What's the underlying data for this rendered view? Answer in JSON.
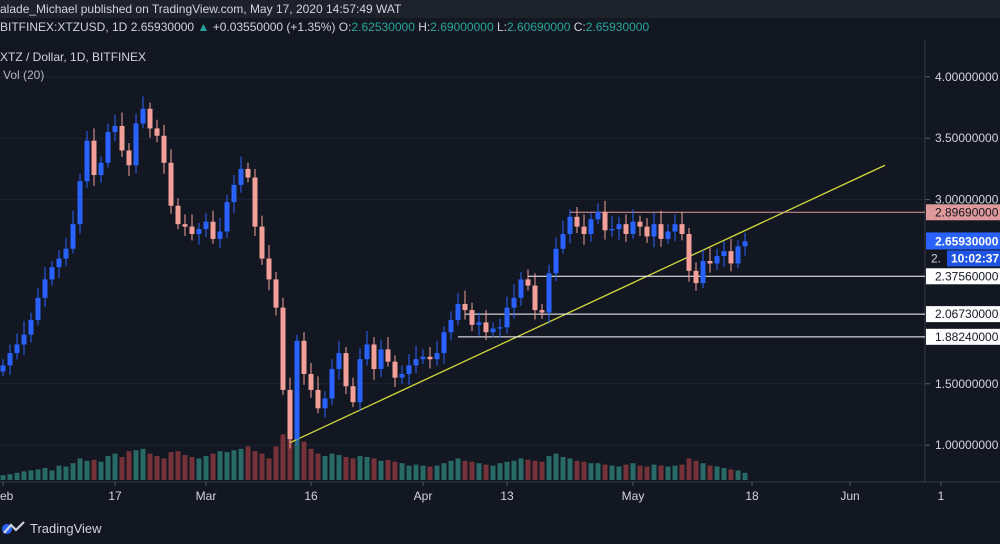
{
  "header": {
    "publisher_line": "alade_Michael published on TradingView.com, May 17, 2020 14:57:49 WAT",
    "ticker": "BITFINEX:XTZUSD, 1D",
    "last": "2.65930000",
    "change": "+0.03550000 (+1.35%)",
    "o_label": "O:",
    "o_value": "2.62530000",
    "h_label": "H:",
    "h_value": "2.69000000",
    "l_label": "L:",
    "l_value": "2.60690000",
    "c_label": "C:",
    "c_value": "2.65930000"
  },
  "legend": {
    "symbol": "XTZ / Dollar, 1D, BITFINEX",
    "volume": "Vol (20)"
  },
  "footer": {
    "brand": "TradingView"
  },
  "colors": {
    "background": "#131722",
    "up": "#2962ff",
    "down": "#f4a09a",
    "vol_up": "#2d7f78",
    "vol_down": "#8e3a3e",
    "trendline": "#d4dc3a",
    "resistance": "#e0999a",
    "support": "#ffffff",
    "price_tag": "#2962ff",
    "countdown_tag": "#1e53e5"
  },
  "chart_data": {
    "type": "candlestick",
    "symbol": "XTZ / Dollar",
    "interval": "1D",
    "exchange": "BITFINEX",
    "ylim": [
      0.7,
      4.3
    ],
    "y_ticks": [
      "4.00000000",
      "3.50000000",
      "3.00000000",
      "1.50000000",
      "1.00000000"
    ],
    "x_ticks": [
      {
        "label": "Feb",
        "day": 0
      },
      {
        "label": "17",
        "day": 16
      },
      {
        "label": "Mar",
        "day": 29
      },
      {
        "label": "16",
        "day": 44
      },
      {
        "label": "Apr",
        "day": 60
      },
      {
        "label": "13",
        "day": 72
      },
      {
        "label": "May",
        "day": 90
      },
      {
        "label": "18",
        "day": 107
      },
      {
        "label": "Jun",
        "day": 121
      },
      {
        "label": "1",
        "day": 134
      }
    ],
    "closes": [
      1.65,
      1.75,
      1.82,
      1.9,
      2.02,
      2.2,
      2.35,
      2.45,
      2.52,
      2.6,
      2.8,
      3.15,
      3.48,
      3.2,
      3.3,
      3.55,
      3.6,
      3.4,
      3.28,
      3.62,
      3.74,
      3.58,
      3.52,
      3.3,
      2.95,
      2.8,
      2.78,
      2.72,
      2.76,
      2.82,
      2.68,
      2.74,
      2.98,
      3.12,
      3.25,
      3.18,
      2.78,
      2.52,
      2.35,
      2.12,
      1.45,
      1.05,
      1.85,
      1.58,
      1.45,
      1.3,
      1.38,
      1.62,
      1.75,
      1.48,
      1.35,
      1.7,
      1.82,
      1.62,
      1.78,
      1.68,
      1.55,
      1.58,
      1.65,
      1.7,
      1.72,
      1.7,
      1.75,
      1.92,
      2.02,
      2.15,
      2.1,
      1.98,
      2.0,
      1.92,
      1.95,
      1.96,
      2.12,
      2.2,
      2.35,
      2.3,
      2.1,
      2.08,
      2.4,
      2.6,
      2.72,
      2.86,
      2.78,
      2.72,
      2.84,
      2.9,
      2.75,
      2.76,
      2.8,
      2.72,
      2.82,
      2.78,
      2.7,
      2.8,
      2.68,
      2.74,
      2.8,
      2.72,
      2.42,
      2.32,
      2.5,
      2.48,
      2.54,
      2.58,
      2.48,
      2.62,
      2.66
    ],
    "volumes": [
      0.1,
      0.12,
      0.15,
      0.18,
      0.2,
      0.22,
      0.25,
      0.2,
      0.3,
      0.28,
      0.35,
      0.45,
      0.4,
      0.42,
      0.38,
      0.5,
      0.55,
      0.48,
      0.6,
      0.62,
      0.65,
      0.55,
      0.5,
      0.45,
      0.58,
      0.6,
      0.52,
      0.48,
      0.45,
      0.5,
      0.55,
      0.6,
      0.58,
      0.62,
      0.65,
      0.7,
      0.6,
      0.55,
      0.45,
      0.7,
      0.95,
      1.0,
      0.9,
      0.8,
      0.65,
      0.55,
      0.5,
      0.55,
      0.52,
      0.48,
      0.45,
      0.5,
      0.48,
      0.45,
      0.4,
      0.42,
      0.38,
      0.35,
      0.3,
      0.32,
      0.3,
      0.28,
      0.3,
      0.35,
      0.4,
      0.45,
      0.4,
      0.38,
      0.35,
      0.32,
      0.3,
      0.35,
      0.38,
      0.4,
      0.45,
      0.42,
      0.4,
      0.38,
      0.5,
      0.55,
      0.48,
      0.45,
      0.4,
      0.38,
      0.35,
      0.35,
      0.32,
      0.3,
      0.28,
      0.32,
      0.35,
      0.3,
      0.28,
      0.32,
      0.3,
      0.28,
      0.3,
      0.32,
      0.45,
      0.4,
      0.35,
      0.3,
      0.28,
      0.25,
      0.22,
      0.2,
      0.15
    ],
    "trendline": {
      "start": {
        "day": 41,
        "price": 1.02
      },
      "end": {
        "day": 126,
        "price": 3.28
      }
    },
    "horizontal_levels": [
      {
        "price": 2.8969,
        "label": "2.89690000",
        "role": "resistance",
        "from_day": 81
      },
      {
        "price": 2.3756,
        "label": "2.37560000",
        "role": "support",
        "from_day": 75
      },
      {
        "price": 2.0673,
        "label": "2.06730000",
        "role": "support",
        "from_day": 66
      },
      {
        "price": 1.8824,
        "label": "1.88240000",
        "role": "support",
        "from_day": 65
      }
    ],
    "last_price": {
      "price": 2.6593,
      "label": "2.65930000",
      "countdown": "10:02:37",
      "partial_label": "2."
    }
  }
}
